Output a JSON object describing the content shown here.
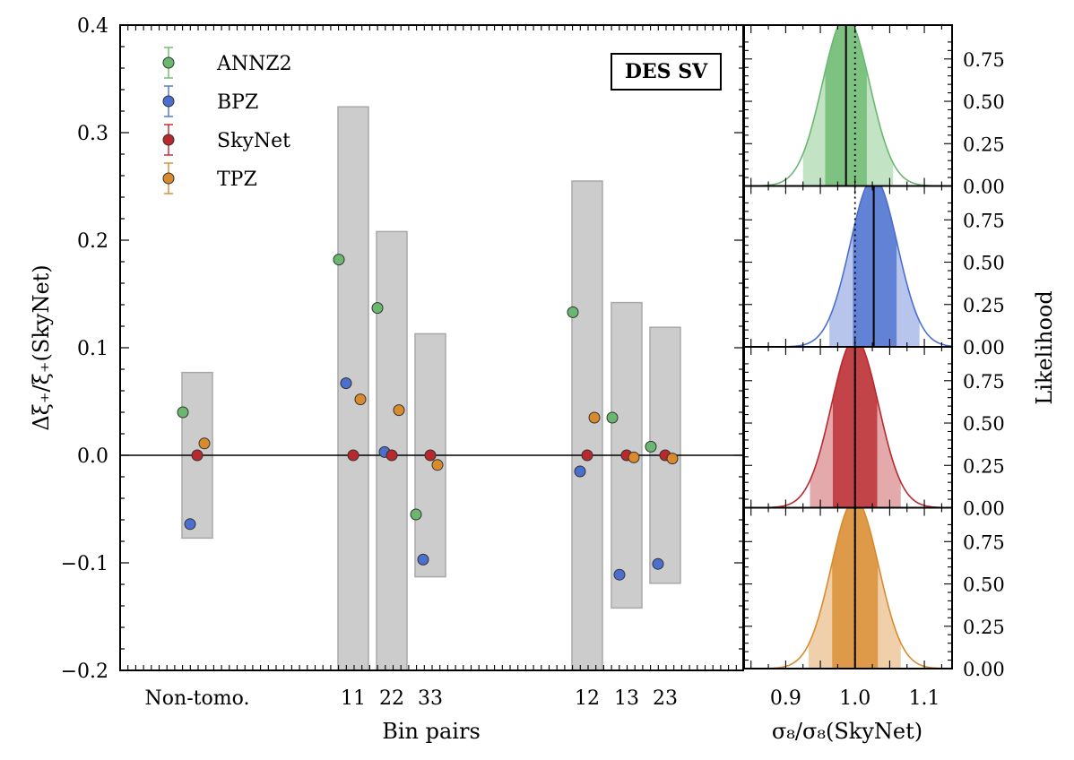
{
  "chart_data": [
    {
      "type": "scatter",
      "title": "",
      "annotation": "DES SV",
      "xlabel": "Bin pairs",
      "ylabel": "Δξ₊/ξ₊(SkyNet)",
      "ylim": [
        -0.2,
        0.4
      ],
      "yticks": [
        "−0.2",
        "−0.1",
        "0.0",
        "0.1",
        "0.2",
        "0.3",
        "0.4"
      ],
      "legend_position": "top-left",
      "categories": [
        "Non-tomo.",
        "11",
        "22",
        "33",
        "12",
        "13",
        "23"
      ],
      "boxes": [
        0.077,
        0.324,
        0.208,
        0.113,
        0.255,
        0.142,
        0.119
      ],
      "series": [
        {
          "name": "ANNZ2",
          "color": "#6ab86f",
          "values": [
            0.04,
            0.182,
            0.137,
            -0.055,
            0.133,
            0.035,
            0.008
          ]
        },
        {
          "name": "BPZ",
          "color": "#4a6fcf",
          "values": [
            -0.064,
            0.067,
            0.003,
            -0.097,
            -0.015,
            -0.111,
            -0.101
          ]
        },
        {
          "name": "SkyNet",
          "color": "#b8282d",
          "values": [
            0.0,
            0.0,
            0.0,
            0.0,
            0.0,
            0.0,
            0.0
          ]
        },
        {
          "name": "TPZ",
          "color": "#d98a2c",
          "values": [
            0.011,
            0.052,
            0.042,
            -0.009,
            0.035,
            -0.002,
            -0.003
          ]
        }
      ]
    },
    {
      "type": "area",
      "xlabel": "σ₈/σ₈(SkyNet)",
      "ylabel": "Likelihood",
      "xlim": [
        0.84,
        1.14
      ],
      "xticks": [
        "0.9",
        "1.0",
        "1.1"
      ],
      "ylim": [
        0.0,
        0.95
      ],
      "yticks": [
        "0.00",
        "0.25",
        "0.50",
        "0.75"
      ],
      "reference_line": 1.0,
      "panels": [
        {
          "name": "ANNZ2",
          "color": "#6ab86f",
          "mean": 0.987,
          "sigma": 0.034,
          "inner": [
            0.957,
            1.017
          ],
          "outer": [
            0.925,
            1.055
          ]
        },
        {
          "name": "BPZ",
          "color": "#4a6fcf",
          "mean": 1.027,
          "sigma": 0.034,
          "inner": [
            0.997,
            1.06
          ],
          "outer": [
            0.963,
            1.093
          ]
        },
        {
          "name": "SkyNet",
          "color": "#b8282d",
          "mean": 1.0,
          "sigma": 0.034,
          "inner": [
            0.968,
            1.032
          ],
          "outer": [
            0.935,
            1.066
          ]
        },
        {
          "name": "TPZ",
          "color": "#d98a2c",
          "mean": 1.0,
          "sigma": 0.034,
          "inner": [
            0.967,
            1.033
          ],
          "outer": [
            0.933,
            1.066
          ]
        }
      ]
    }
  ]
}
